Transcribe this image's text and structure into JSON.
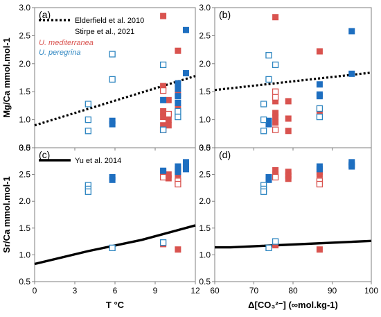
{
  "chart_data": [
    {
      "panel": "a",
      "type": "scatter",
      "panel_label": "(a)",
      "title": "",
      "xlabel": "",
      "ylabel": "Mg/Ca mmol.mol-1",
      "xlim": [
        0,
        12
      ],
      "ylim": [
        0.5,
        3.0
      ],
      "x_ticks": [
        "0",
        "3",
        "6",
        "9",
        "12"
      ],
      "y_ticks": [
        "0.5",
        "1.0",
        "1.5",
        "2.0",
        "2.5",
        "3.0"
      ],
      "grid": false,
      "legend": {
        "placement": "top-left",
        "entries": [
          {
            "label": "Elderfield et al. 2010",
            "symbol": "dotted-line"
          },
          {
            "label": "Stirpe et al., 2021",
            "symbol": "none"
          },
          {
            "label": "U. mediterranea",
            "symbol": "text",
            "color": "#d9534f"
          },
          {
            "label": "U. peregrina",
            "symbol": "text",
            "color": "#2e86c1"
          }
        ]
      },
      "lines": [
        {
          "name": "Elderfield et al. 2010",
          "style": "dotted",
          "color": "#000000",
          "x": [
            0,
            12
          ],
          "y": [
            0.9,
            1.78
          ]
        }
      ],
      "series": [
        {
          "name": "U. mediterranea filled",
          "color": "#d9534f",
          "filled": true,
          "x": [
            9.6,
            9.6,
            9.6,
            9.6,
            9.6,
            10.0,
            10.0,
            10.0,
            10.7,
            10.7,
            10.7,
            10.7
          ],
          "y": [
            2.85,
            1.15,
            1.05,
            0.9,
            1.6,
            1.35,
            1.0,
            0.9,
            2.23,
            1.2,
            1.45,
            1.1
          ]
        },
        {
          "name": "U. mediterranea open",
          "color": "#d9534f",
          "filled": false,
          "x": [
            9.6,
            9.6,
            10.0
          ],
          "y": [
            1.52,
            0.82,
            1.1
          ]
        },
        {
          "name": "U. peregrina filled",
          "color": "#1e6fc0",
          "filled": true,
          "x": [
            5.8,
            5.8,
            9.6,
            10.7,
            10.7,
            10.7,
            10.7,
            11.3,
            11.3
          ],
          "y": [
            0.98,
            0.92,
            1.35,
            1.65,
            1.55,
            1.42,
            1.3,
            1.83,
            2.6
          ]
        },
        {
          "name": "U. peregrina open",
          "color": "#2e86c1",
          "filled": false,
          "x": [
            4.0,
            4.0,
            4.0,
            5.8,
            5.8,
            9.6,
            9.6,
            10.7,
            10.7
          ],
          "y": [
            1.28,
            1.0,
            0.8,
            2.17,
            1.72,
            1.98,
            0.82,
            1.05,
            1.15
          ]
        }
      ]
    },
    {
      "panel": "b",
      "type": "scatter",
      "panel_label": "(b)",
      "title": "",
      "xlabel": "",
      "ylabel": "",
      "xlim": [
        60,
        100
      ],
      "ylim": [
        0.5,
        3.0
      ],
      "x_ticks": [
        "60",
        "70",
        "80",
        "90",
        "100"
      ],
      "y_ticks": [
        "0.5",
        "1.0",
        "1.5",
        "2.0",
        "2.5",
        "3.0"
      ],
      "grid": false,
      "lines": [
        {
          "name": "Stirpe et al., 2021",
          "style": "dotted",
          "color": "#000000",
          "x": [
            60,
            100
          ],
          "y": [
            1.53,
            1.84
          ]
        }
      ],
      "series": [
        {
          "name": "U. mediterranea filled",
          "color": "#d9534f",
          "filled": true,
          "x": [
            75.5,
            75.5,
            75.5,
            75.5,
            75.5,
            78.8,
            78.8,
            78.8,
            86.8,
            86.8,
            86.8
          ],
          "y": [
            2.83,
            1.12,
            1.05,
            0.95,
            1.33,
            1.33,
            1.02,
            0.8,
            2.22,
            1.2,
            1.1
          ]
        },
        {
          "name": "U. mediterranea open",
          "color": "#d9534f",
          "filled": false,
          "x": [
            75.5,
            75.5,
            75.5
          ],
          "y": [
            1.5,
            1.4,
            0.82
          ]
        },
        {
          "name": "U. peregrina filled",
          "color": "#1e6fc0",
          "filled": true,
          "x": [
            73.8,
            73.8,
            86.8,
            86.8,
            86.8,
            95.0,
            95.0
          ],
          "y": [
            0.98,
            0.92,
            1.63,
            1.45,
            1.42,
            2.58,
            1.82
          ]
        },
        {
          "name": "U. peregrina open",
          "color": "#2e86c1",
          "filled": false,
          "x": [
            72.5,
            72.5,
            72.5,
            73.8,
            73.8,
            75.5,
            86.8,
            86.8
          ],
          "y": [
            1.28,
            1.0,
            0.8,
            2.15,
            1.72,
            1.98,
            1.05,
            1.2
          ]
        }
      ]
    },
    {
      "panel": "c",
      "type": "scatter",
      "panel_label": "(c)",
      "title": "",
      "xlabel": "T °C",
      "ylabel": "Sr/Ca mmol.mol-1",
      "xlim": [
        0,
        12
      ],
      "ylim": [
        0.5,
        3.0
      ],
      "x_ticks": [
        "0",
        "3",
        "6",
        "9",
        "12"
      ],
      "y_ticks": [
        "0.5",
        "1.0",
        "1.5",
        "2.0",
        "2.5",
        "3.0"
      ],
      "grid": false,
      "legend": {
        "placement": "top-left",
        "entries": [
          {
            "label": "Yu et al. 2014",
            "symbol": "solid-line"
          }
        ]
      },
      "lines": [
        {
          "name": "Yu et al. 2014",
          "style": "solid",
          "color": "#000000",
          "x": [
            0,
            4,
            8,
            12
          ],
          "y": [
            0.83,
            1.07,
            1.28,
            1.55
          ]
        }
      ],
      "series": [
        {
          "name": "U. mediterranea filled",
          "color": "#d9534f",
          "filled": true,
          "x": [
            9.6,
            9.6,
            10.0,
            10.0,
            10.7,
            10.7,
            10.7
          ],
          "y": [
            2.55,
            1.2,
            2.5,
            2.43,
            2.6,
            2.5,
            1.1
          ]
        },
        {
          "name": "U. mediterranea open",
          "color": "#d9534f",
          "filled": false,
          "x": [
            9.6,
            10.7,
            10.7
          ],
          "y": [
            2.45,
            2.38,
            2.32
          ]
        },
        {
          "name": "U. peregrina filled",
          "color": "#1e6fc0",
          "filled": true,
          "x": [
            5.8,
            5.8,
            9.6,
            10.7,
            10.7,
            11.3,
            11.3,
            11.3
          ],
          "y": [
            2.45,
            2.4,
            2.57,
            2.65,
            2.55,
            2.73,
            2.65,
            2.6
          ]
        },
        {
          "name": "U. peregrina open",
          "color": "#2e86c1",
          "filled": false,
          "x": [
            4.0,
            4.0,
            4.0,
            5.8,
            9.6
          ],
          "y": [
            2.3,
            2.23,
            2.18,
            1.13,
            1.23
          ]
        }
      ]
    },
    {
      "panel": "d",
      "type": "scatter",
      "panel_label": "(d)",
      "title": "",
      "xlabel": "Δ[CO₃²⁻] (∞mol.kg-1)",
      "ylabel": "",
      "xlim": [
        60,
        100
      ],
      "ylim": [
        0.5,
        3.0
      ],
      "x_ticks": [
        "60",
        "70",
        "80",
        "90",
        "100"
      ],
      "y_ticks": [
        "0.5",
        "1.0",
        "1.5",
        "2.0",
        "2.5",
        "3.0"
      ],
      "grid": false,
      "lines": [
        {
          "name": "Yu et al. 2014",
          "style": "solid",
          "color": "#000000",
          "x": [
            60,
            64,
            100
          ],
          "y": [
            1.14,
            1.14,
            1.26
          ]
        }
      ],
      "series": [
        {
          "name": "U. mediterranea filled",
          "color": "#d9534f",
          "filled": true,
          "x": [
            75.5,
            75.5,
            75.5,
            78.8,
            78.8,
            78.8,
            86.8,
            86.8,
            86.8
          ],
          "y": [
            2.58,
            2.5,
            1.18,
            2.55,
            2.48,
            2.42,
            2.55,
            2.5,
            1.1
          ]
        },
        {
          "name": "U. mediterranea open",
          "color": "#d9534f",
          "filled": false,
          "x": [
            75.5,
            86.8,
            86.8
          ],
          "y": [
            2.45,
            2.38,
            2.32
          ]
        },
        {
          "name": "U. peregrina filled",
          "color": "#1e6fc0",
          "filled": true,
          "x": [
            73.8,
            73.8,
            86.8,
            86.8,
            95.0,
            95.0,
            95.0
          ],
          "y": [
            2.45,
            2.4,
            2.65,
            2.6,
            2.73,
            2.68,
            2.65
          ]
        },
        {
          "name": "U. peregrina open",
          "color": "#2e86c1",
          "filled": false,
          "x": [
            72.5,
            72.5,
            72.5,
            73.8,
            75.5
          ],
          "y": [
            2.3,
            2.23,
            2.18,
            1.13,
            1.25
          ]
        }
      ]
    }
  ]
}
